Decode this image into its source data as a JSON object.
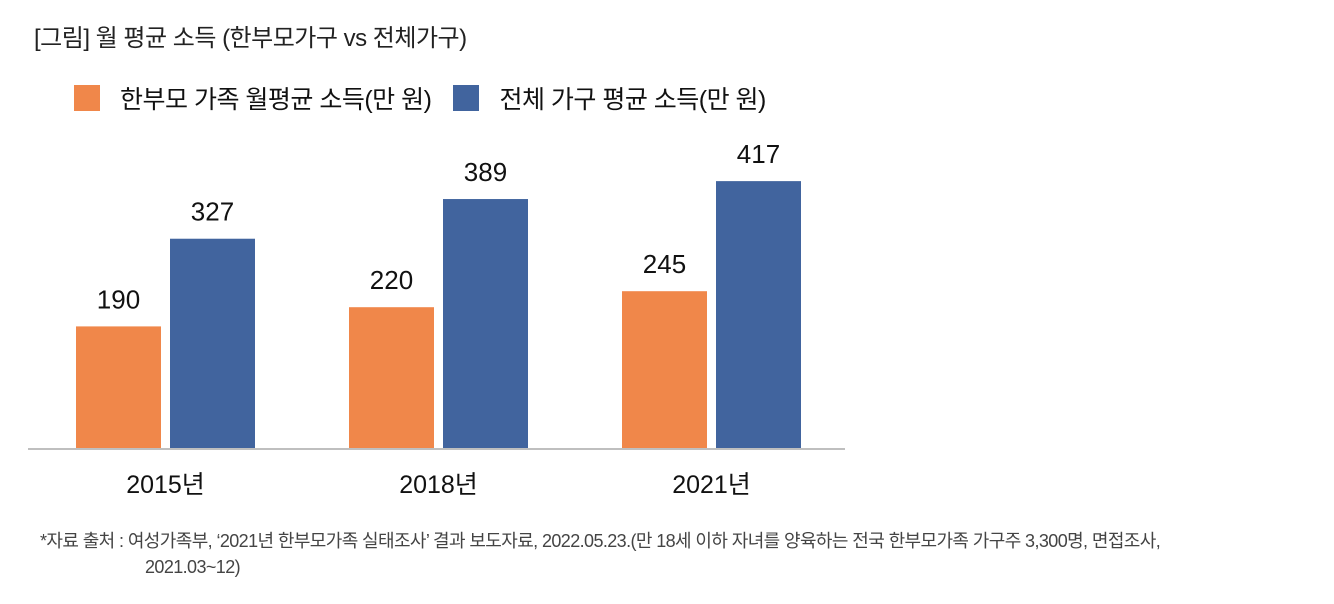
{
  "title": "[그림] 월 평균 소득 (한부모가구 vs 전체가구)",
  "chart_data": {
    "type": "bar",
    "title": "[그림] 월 평균 소득 (한부모가구 vs 전체가구)",
    "xlabel": "",
    "ylabel": "",
    "categories": [
      "2015년",
      "2018년",
      "2021년"
    ],
    "series": [
      {
        "name": "한부모 가족 월평균 소득(만 원)",
        "color": "#F0874A",
        "values": [
          190,
          220,
          245
        ]
      },
      {
        "name": "전체 가구 평균 소득(만 원)",
        "color": "#41649E",
        "values": [
          327,
          389,
          417
        ]
      }
    ],
    "ylim": [
      0,
      440
    ],
    "grid": false,
    "legend_position": "top-left",
    "axis_color": "#BFBFBF"
  },
  "source": {
    "line1": "*자료 출처 : 여성가족부, ‘2021년 한부모가족 실태조사’ 결과 보도자료, 2022.05.23.(만 18세 이하 자녀를 양육하는 전국 한부모가족 가구주 3,300명, 면접조사,",
    "line2": "2021.03~12)"
  }
}
